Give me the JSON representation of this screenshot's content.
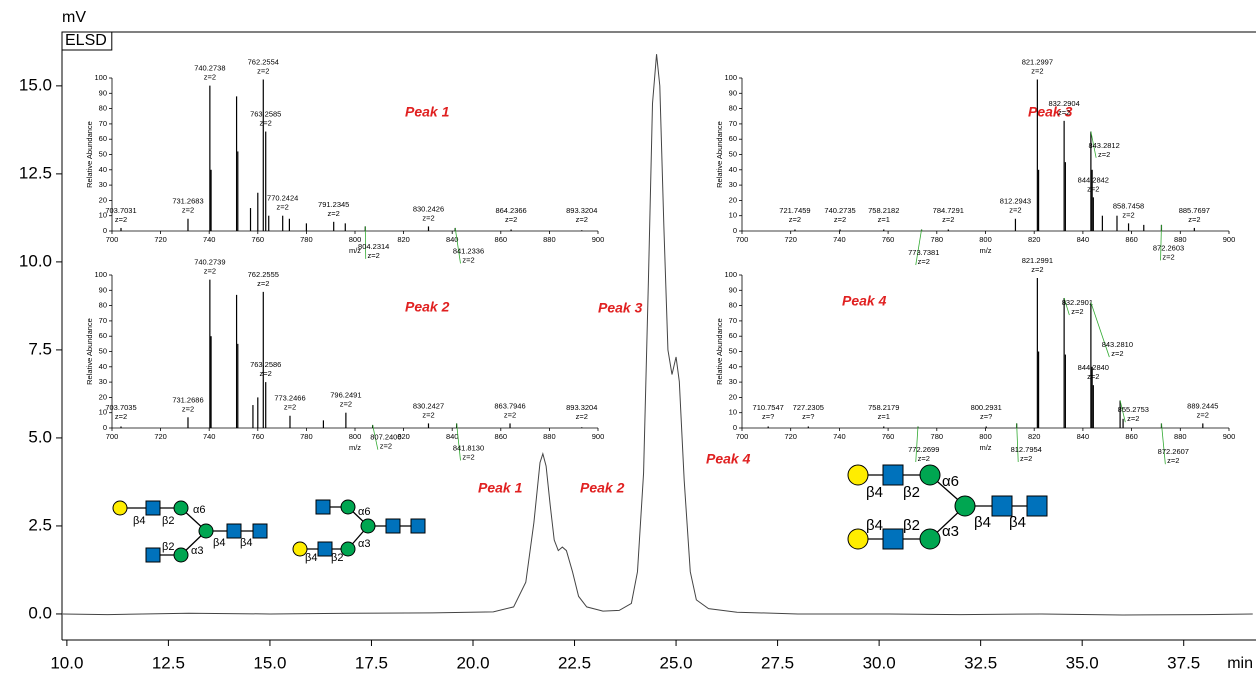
{
  "chart_data": [
    {
      "type": "line",
      "title": "ELSD",
      "y_label": "mV",
      "x_label": "min",
      "color": "#444444",
      "x": [
        9.9,
        11,
        13,
        15,
        17,
        19,
        20.5,
        21.0,
        21.3,
        21.5,
        21.65,
        21.72,
        21.8,
        21.9,
        22.0,
        22.1,
        22.2,
        22.3,
        22.45,
        22.6,
        22.8,
        23.2,
        23.6,
        23.9,
        24.05,
        24.2,
        24.32,
        24.42,
        24.52,
        24.6,
        24.7,
        24.8,
        24.9,
        25.0,
        25.08,
        25.2,
        25.35,
        25.5,
        25.8,
        26.5,
        28,
        30,
        32,
        34,
        36,
        38,
        39.2
      ],
      "values": [
        0.0,
        -0.02,
        0.02,
        0.0,
        0.02,
        0.03,
        0.06,
        0.2,
        0.9,
        2.6,
        4.3,
        4.55,
        4.2,
        3.1,
        2.1,
        1.8,
        1.9,
        1.8,
        1.2,
        0.5,
        0.2,
        0.08,
        0.1,
        0.3,
        1.2,
        4.0,
        9.5,
        14.5,
        15.9,
        15.0,
        11.0,
        7.5,
        6.8,
        7.3,
        6.6,
        3.8,
        1.2,
        0.4,
        0.15,
        0.05,
        0.0,
        0.0,
        -0.02,
        0.0,
        -0.03,
        -0.02,
        0.0
      ],
      "xlim": [
        9.88,
        39.28
      ],
      "ylim": [
        -0.74,
        16.53
      ],
      "xticks": [
        {
          "value": 10,
          "label": "10.0"
        },
        12.5,
        {
          "value": 15,
          "label": "15.0"
        },
        17.5,
        {
          "value": 20,
          "label": "20.0"
        },
        22.5,
        {
          "value": 25,
          "label": "25.0"
        },
        27.5,
        {
          "value": 30,
          "label": "30.0"
        },
        32.5,
        {
          "value": 35,
          "label": "35.0"
        },
        37.5
      ],
      "yticks": [
        {
          "value": 0,
          "label": "0.0"
        },
        2.5,
        {
          "value": 5,
          "label": "5.0"
        },
        7.5,
        {
          "value": 10,
          "label": "10.0"
        },
        12.5,
        {
          "value": 15,
          "label": "15.0"
        }
      ],
      "annotations": [
        "Peak 1",
        "Peak 2",
        "Peak 3",
        "Peak 4"
      ]
    },
    {
      "type": "stem",
      "title": "Peak 1",
      "x_label": "m/z",
      "y_label": "Relative Abundance",
      "color": "#000000",
      "x": [
        703.7031,
        731.2683,
        740.2738,
        740.77,
        751.27,
        751.77,
        757,
        760,
        762.2554,
        763.2585,
        764.5,
        770.2424,
        773,
        780,
        791.2345,
        796,
        804.2314,
        830.2426,
        841.2336,
        864.2366,
        893.3204
      ],
      "values": [
        2,
        8,
        95,
        40,
        88,
        52,
        15,
        25,
        99,
        65,
        10,
        10,
        8,
        5,
        6,
        5,
        3,
        3,
        2,
        1,
        0.5
      ],
      "x_labels": [
        "703.7031",
        "731.2683",
        "740.2738",
        null,
        null,
        null,
        null,
        null,
        "762.2554",
        "763.2585",
        null,
        "770.2424",
        null,
        null,
        "791.2345",
        null,
        "804.2314",
        "830.2426",
        "841.2336",
        "864.2366",
        "893.3204"
      ],
      "charges": [
        "z=2",
        "z=2",
        "z=2",
        null,
        null,
        null,
        null,
        null,
        "z=2",
        "z=2",
        null,
        "z=2",
        null,
        null,
        "z=2",
        null,
        "z=2",
        "z=2",
        "z=2",
        "z=2",
        "z=2"
      ],
      "xlim": [
        700,
        900
      ],
      "ylim": [
        0,
        100
      ],
      "xticks": [
        700,
        720,
        740,
        760,
        780,
        800,
        820,
        840,
        860,
        880,
        900
      ],
      "yticks": [
        0,
        10,
        20,
        30,
        40,
        50,
        60,
        70,
        80,
        90,
        100
      ]
    },
    {
      "type": "stem",
      "title": "Peak 2",
      "x_label": "m/z",
      "y_label": "Relative Abundance",
      "color": "#000000",
      "x": [
        703.7035,
        731.2686,
        740.2739,
        740.77,
        751.27,
        751.77,
        758,
        760,
        762.2555,
        763.2586,
        773.2466,
        787,
        796.2491,
        807.24,
        830.2427,
        841.813,
        863.7946,
        893.3204
      ],
      "values": [
        1,
        7,
        97,
        60,
        87,
        55,
        15,
        20,
        89,
        30,
        8,
        5,
        10,
        2,
        3,
        3,
        3,
        0.5
      ],
      "x_labels": [
        "703.7035",
        "731.2686",
        "740.2739",
        null,
        null,
        null,
        null,
        null,
        "762.2555",
        "763.2586",
        "773.2466",
        null,
        "796.2491",
        "807.2400",
        "830.2427",
        "841.8130",
        "863.7946",
        "893.3204"
      ],
      "charges": [
        "z=2",
        "z=2",
        "z=2",
        null,
        null,
        null,
        null,
        null,
        "z=2",
        "z=2",
        "z=2",
        null,
        "z=2",
        "z=2",
        "z=2",
        "z=2",
        "z=2",
        "z=2"
      ],
      "xlim": [
        700,
        900
      ],
      "ylim": [
        0,
        100
      ],
      "xticks": [
        700,
        720,
        740,
        760,
        780,
        800,
        820,
        840,
        860,
        880,
        900
      ],
      "yticks": [
        0,
        10,
        20,
        30,
        40,
        50,
        60,
        70,
        80,
        90,
        100
      ]
    },
    {
      "type": "stem",
      "title": "Peak 3",
      "x_label": "m/z",
      "y_label": "Relative Abundance",
      "color": "#000000",
      "x": [
        721.7459,
        740.2735,
        758.2182,
        773.7381,
        784.7291,
        812.2943,
        821.2997,
        821.8,
        832.2904,
        832.8,
        843.2812,
        843.8,
        844.2842,
        848,
        854,
        858.7458,
        865,
        872.2603,
        885.7697
      ],
      "values": [
        1,
        1,
        1,
        1,
        1,
        8,
        99,
        40,
        72,
        45,
        65,
        40,
        22,
        10,
        10,
        5,
        4,
        4,
        2
      ],
      "x_labels": [
        "721.7459",
        "740.2735",
        "758.2182",
        "773.7381",
        "784.7291",
        "812.2943",
        "821.2997",
        null,
        "832.2904",
        null,
        "843.2812",
        null,
        "844.2842",
        null,
        null,
        "858.7458",
        null,
        "872.2603",
        "885.7697"
      ],
      "charges": [
        "z=2",
        "z=2",
        "z=1",
        "z=2",
        "z=2",
        "z=2",
        "z=2",
        null,
        "z=2",
        null,
        "z=2",
        null,
        "z=2",
        null,
        null,
        "z=2",
        null,
        "z=2",
        "z=2"
      ],
      "xlim": [
        700,
        900
      ],
      "ylim": [
        0,
        100
      ],
      "xticks": [
        700,
        720,
        740,
        760,
        780,
        800,
        820,
        840,
        860,
        880,
        900
      ],
      "yticks": [
        0,
        10,
        20,
        30,
        40,
        50,
        60,
        70,
        80,
        90,
        100
      ]
    },
    {
      "type": "stem",
      "title": "Peak 4",
      "x_label": "m/z",
      "y_label": "Relative Abundance",
      "color": "#000000",
      "x": [
        710.7547,
        727.2305,
        758.2179,
        772.2699,
        800.2931,
        812.7954,
        821.2991,
        821.8,
        832.2901,
        832.8,
        843.281,
        843.8,
        844.284,
        855.2753,
        856.5,
        872.2607,
        889.2445
      ],
      "values": [
        1,
        1,
        1,
        1,
        1,
        3,
        98,
        50,
        85,
        48,
        82,
        40,
        28,
        18,
        6,
        3,
        3
      ],
      "x_labels": [
        "710.7547",
        "727.2305",
        "758.2179",
        "772.2699",
        "800.2931",
        "812.7954",
        "821.2991",
        null,
        "832.2901",
        null,
        "843.2810",
        null,
        "844.2840",
        "855.2753",
        null,
        "872.2607",
        "889.2445"
      ],
      "charges": [
        "z=?",
        "z=?",
        "z=1",
        "z=2",
        "z=?",
        "z=2",
        "z=2",
        null,
        "z=2",
        null,
        "z=2",
        null,
        "z=2",
        "z=2",
        null,
        "z=2",
        "z=2"
      ],
      "xlim": [
        700,
        900
      ],
      "ylim": [
        0,
        100
      ],
      "xticks": [
        700,
        720,
        740,
        760,
        780,
        800,
        820,
        840,
        860,
        880,
        900
      ],
      "yticks": [
        0,
        10,
        20,
        30,
        40,
        50,
        60,
        70,
        80,
        90,
        100
      ]
    }
  ],
  "glycans": [
    {
      "linkages": [
        "β4",
        "β2",
        "α6",
        "β2",
        "α3",
        "β4",
        "β4"
      ]
    },
    {
      "linkages": [
        "α6",
        "α3",
        "β4",
        "β2"
      ]
    },
    {
      "linkages": [
        "β4",
        "β2",
        "α6",
        "β4",
        "β2",
        "α3",
        "β4",
        "β4"
      ]
    }
  ]
}
